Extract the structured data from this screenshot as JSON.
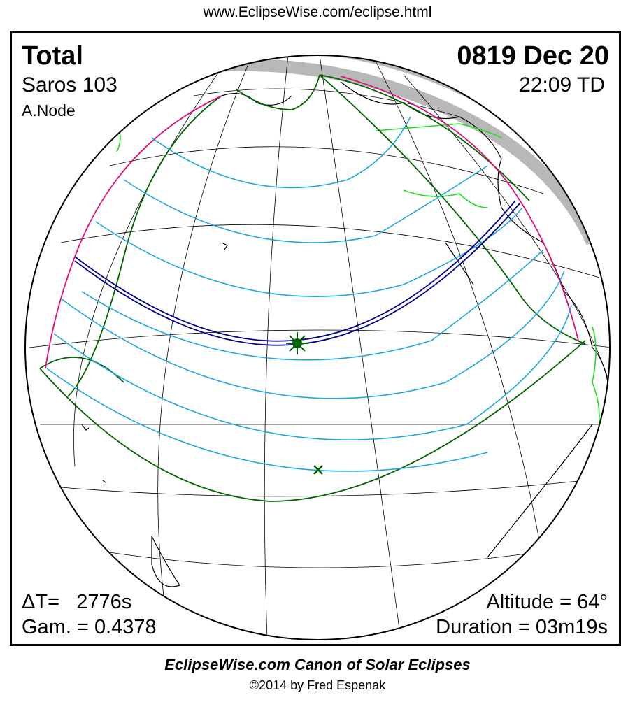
{
  "url": "www.EclipseWise.com/eclipse.html",
  "eclipse": {
    "type": "Total",
    "saros": "Saros 103",
    "node": "A.Node",
    "date": "0819 Dec 20",
    "time": "22:09 TD",
    "delta_t": "ΔT=   2776s",
    "gamma": "Gam. = 0.4378",
    "altitude": "Altitude = 64°",
    "duration": "Duration = 03m19s"
  },
  "footer": {
    "canon": "EclipseWise.com Canon of Solar Eclipses",
    "copyright": "©2014 by Fred Espenak"
  },
  "colors": {
    "totality_path": "#00008b",
    "penumbral_limits": "#006400",
    "time_contours": "#1fa8e0",
    "rise_set_curve": "#e0107f",
    "night_shading": "#b8b8b8",
    "greatest_eclipse_marker": "#006400",
    "subsolar_marker": "#006400",
    "borders": "#22dd22"
  },
  "markers": [
    "greatest-eclipse-star",
    "subsolar-point-x"
  ]
}
